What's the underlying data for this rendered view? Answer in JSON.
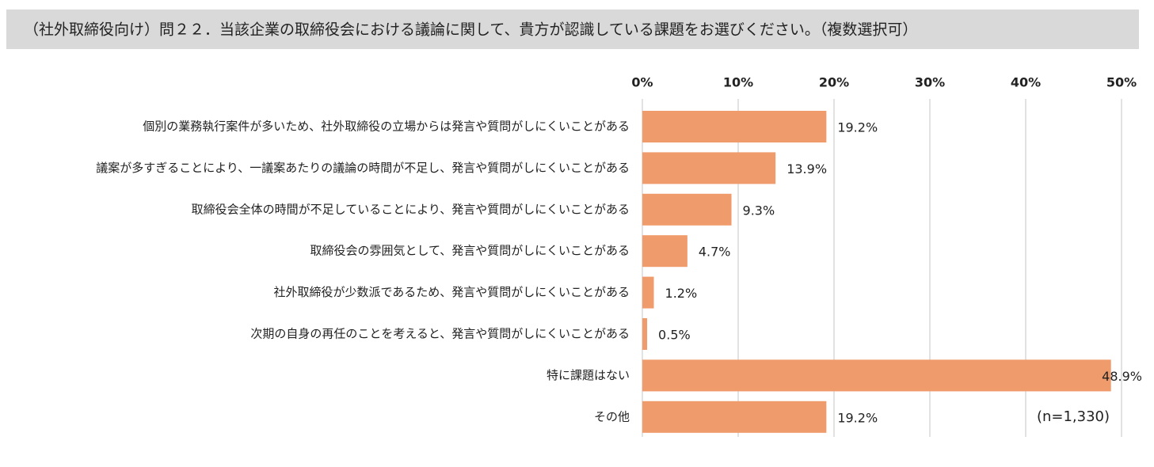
{
  "chart_data": {
    "type": "hbar",
    "title": "（社外取締役向け）問２２．当該企業の取締役会における議論に関して、貴方が認識している課題をお選びください。（複数選択可）",
    "categories": [
      "個別の業務執行案件が多いため、社外取締役の立場からは発言や質問がしにくいことがある",
      "議案が多すぎることにより、一議案あたりの議論の時間が不足し、発言や質問がしにくいことがある",
      "取締役会全体の時間が不足していることにより、発言や質問がしにくいことがある",
      "取締役会の雰囲気として、発言や質問がしにくいことがある",
      "社外取締役が少数派であるため、発言や質問がしにくいことがある",
      "次期の自身の再任のことを考えると、発言や質問がしにくいことがある",
      "特に課題はない",
      "その他"
    ],
    "values": [
      19.2,
      13.9,
      9.3,
      4.7,
      1.2,
      0.5,
      48.9,
      19.2
    ],
    "value_labels": [
      "19.2%",
      "13.9%",
      "9.3%",
      "4.7%",
      "1.2%",
      "0.5%",
      "48.9%",
      "19.2%"
    ],
    "color": "#f09b6b",
    "xlim": [
      0,
      50
    ],
    "xticks": [
      {
        "value": 0,
        "label": "0%"
      },
      {
        "value": 10,
        "label": "10%"
      },
      {
        "value": 20,
        "label": "20%"
      },
      {
        "value": 30,
        "label": "30%"
      },
      {
        "value": 40,
        "label": "40%"
      },
      {
        "value": 50,
        "label": "50%"
      }
    ],
    "grid": true,
    "note": "(n=1,330)"
  }
}
